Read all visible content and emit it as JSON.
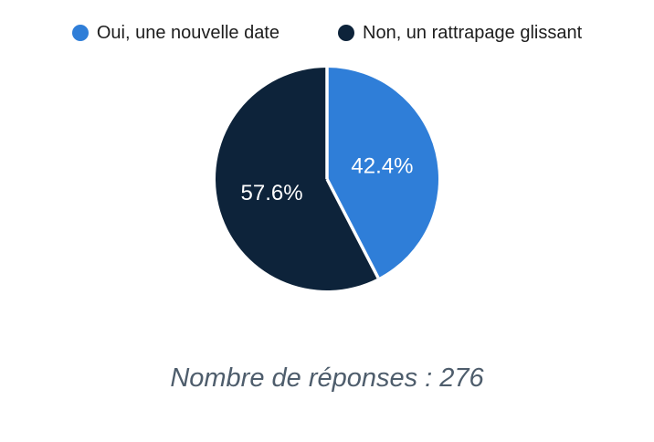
{
  "chart_data": {
    "type": "pie",
    "title": "",
    "legend_position": "top",
    "start_angle_deg": 0,
    "direction": "clockwise",
    "slice_border_color": "#ffffff",
    "label_color": "#ffffff",
    "label_radius_fraction": 0.51,
    "n_responses": 276,
    "segments": [
      {
        "label": "Oui, une nouvelle date",
        "value": 42.4,
        "display": "42.4%",
        "color": "#2f7ed8"
      },
      {
        "label": "Non, un rattrapage glissant",
        "value": 57.6,
        "display": "57.6%",
        "color": "#0d233a"
      }
    ]
  },
  "caption": {
    "text": "Nombre de réponses : 276",
    "color": "#4e5d6c"
  }
}
